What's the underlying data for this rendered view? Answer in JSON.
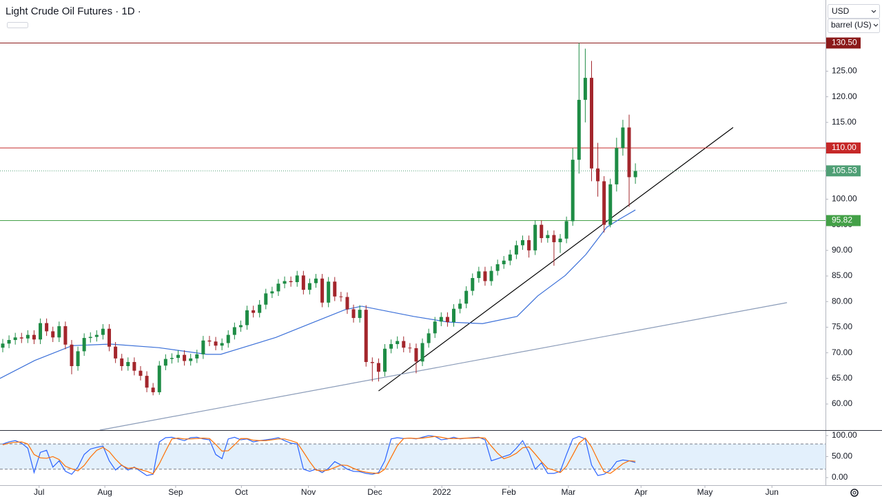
{
  "header": {
    "title": "Light Crude Oil Futures · 1D ·",
    "currency": "USD",
    "unit": "barrel (US)"
  },
  "chart_data": [
    {
      "type": "candlestick",
      "xlim": [
        -0.44,
        131.35
      ],
      "xticks": [
        {
          "value": 5.8,
          "label": "Jul"
        },
        {
          "value": 16.3,
          "label": "Aug"
        },
        {
          "value": 27.6,
          "label": "Sep"
        },
        {
          "value": 38.1,
          "label": "Oct"
        },
        {
          "value": 48.8,
          "label": "Nov"
        },
        {
          "value": 59.4,
          "label": "Dec"
        },
        {
          "value": 70.1,
          "label": "2022"
        },
        {
          "value": 80.8,
          "label": "Feb"
        },
        {
          "value": 90.3,
          "label": "Mar"
        },
        {
          "value": 101.9,
          "label": "Apr"
        },
        {
          "value": 112.1,
          "label": "May"
        },
        {
          "value": 122.8,
          "label": "Jun"
        }
      ],
      "ylim": [
        54.9,
        138.9
      ],
      "yticks": [
        {
          "value": 60,
          "label": "60.00"
        },
        {
          "value": 65,
          "label": "65.00"
        },
        {
          "value": 70,
          "label": "70.00"
        },
        {
          "value": 75,
          "label": "75.00"
        },
        {
          "value": 80,
          "label": "80.00"
        },
        {
          "value": 85,
          "label": "85.00"
        },
        {
          "value": 90,
          "label": "90.00"
        },
        {
          "value": 95,
          "label": "95.00"
        },
        {
          "value": 100,
          "label": "100.00"
        },
        {
          "value": 105,
          "label": "105.00"
        },
        {
          "value": 110,
          "label": "110.00"
        },
        {
          "value": 115,
          "label": "115.00"
        },
        {
          "value": 120,
          "label": "120.00"
        },
        {
          "value": 125,
          "label": "125.00"
        }
      ],
      "up_color": "#1e8c45",
      "down_color": "#a3262c",
      "open": [
        71.0,
        71.8,
        72.5,
        73.0,
        72.8,
        73.5,
        72.6,
        75.8,
        74.2,
        73.0,
        75.2,
        71.6,
        67.4,
        70.3,
        72.9,
        73.1,
        73.5,
        74.7,
        71.2,
        68.9,
        67.4,
        68.2,
        66.5,
        65.5,
        63.2,
        62.3,
        67.5,
        68.8,
        69.0,
        69.6,
        68.4,
        68.9,
        69.7,
        72.4,
        72.2,
        71.4,
        71.9,
        73.5,
        75.0,
        75.4,
        78.3,
        77.8,
        79.4,
        81.6,
        82.0,
        83.5,
        84.0,
        83.8,
        85.1,
        82.3,
        83.6,
        84.5,
        79.8,
        83.9,
        81.0,
        80.9,
        78.5,
        76.8,
        78.4,
        68.2,
        68.0,
        66.3,
        70.8,
        71.7,
        72.3,
        71.0,
        70.9,
        68.3,
        71.9,
        73.8,
        76.1,
        77.0,
        76.0,
        78.6,
        79.6,
        82.1,
        84.6,
        85.9,
        84.0,
        86.0,
        87.3,
        88.0,
        89.2,
        91.0,
        92.0,
        90.0,
        95.0,
        92.4,
        93.0,
        91.6,
        92.3,
        95.7,
        107.7,
        119.4,
        123.7,
        106.0,
        103.5,
        95.0,
        102.9,
        110.0,
        114.0,
        104.3
      ],
      "high": [
        72.7,
        73.4,
        73.9,
        73.9,
        74.4,
        74.4,
        76.7,
        76.7,
        75.1,
        76.1,
        76.1,
        72.5,
        71.2,
        73.8,
        74.0,
        74.4,
        75.6,
        75.6,
        72.1,
        69.8,
        69.1,
        69.1,
        67.4,
        66.4,
        64.1,
        68.4,
        69.7,
        69.9,
        70.5,
        70.5,
        69.8,
        70.6,
        73.3,
        73.3,
        73.1,
        72.8,
        74.4,
        75.9,
        76.3,
        79.2,
        79.2,
        80.3,
        82.5,
        82.9,
        84.4,
        84.9,
        84.9,
        86.0,
        86.0,
        84.5,
        85.4,
        85.4,
        84.8,
        84.8,
        81.9,
        81.8,
        79.4,
        79.3,
        79.3,
        69.1,
        68.9,
        71.7,
        72.6,
        73.2,
        73.2,
        71.9,
        71.8,
        72.8,
        74.7,
        77.0,
        77.9,
        77.9,
        79.5,
        80.5,
        83.0,
        85.5,
        86.8,
        86.8,
        86.9,
        88.2,
        88.9,
        90.1,
        91.9,
        92.9,
        92.9,
        95.9,
        95.9,
        93.9,
        93.9,
        93.2,
        96.6,
        110.0,
        130.5,
        129.4,
        127.0,
        111.0,
        104.5,
        104.0,
        112.0,
        115.5,
        116.5,
        107.0
      ],
      "low": [
        70.1,
        70.9,
        71.6,
        71.9,
        71.9,
        71.7,
        71.7,
        73.3,
        72.1,
        72.1,
        70.7,
        65.8,
        66.5,
        69.4,
        72.0,
        72.2,
        72.6,
        70.3,
        68.0,
        66.5,
        66.5,
        65.6,
        64.6,
        62.3,
        61.7,
        61.8,
        66.6,
        67.9,
        68.1,
        67.5,
        67.5,
        68.0,
        68.8,
        71.3,
        70.5,
        70.5,
        71.0,
        72.6,
        74.1,
        74.5,
        76.9,
        76.9,
        78.5,
        80.7,
        81.1,
        82.6,
        82.9,
        82.9,
        81.4,
        81.4,
        82.7,
        78.9,
        78.9,
        80.1,
        80.0,
        77.6,
        75.9,
        75.9,
        67.3,
        64.4,
        64.4,
        65.4,
        69.9,
        70.8,
        70.1,
        70.0,
        66.0,
        67.4,
        71.0,
        72.9,
        75.2,
        75.1,
        75.1,
        77.7,
        78.7,
        81.2,
        83.7,
        83.1,
        83.1,
        85.1,
        86.4,
        87.1,
        88.3,
        90.1,
        88.6,
        89.1,
        91.5,
        91.5,
        87.0,
        89.5,
        91.4,
        94.8,
        105.0,
        115.0,
        103.5,
        100.5,
        93.5,
        94.5,
        101.5,
        108.5,
        98.5,
        103.0
      ],
      "close": [
        71.8,
        72.5,
        73.0,
        72.8,
        73.5,
        72.6,
        75.8,
        74.2,
        73.0,
        75.2,
        71.6,
        67.4,
        70.3,
        72.9,
        73.1,
        73.5,
        74.7,
        71.2,
        68.9,
        67.4,
        68.2,
        66.5,
        65.5,
        63.2,
        62.3,
        67.5,
        68.8,
        69.0,
        69.6,
        68.4,
        68.9,
        69.7,
        72.4,
        72.2,
        71.4,
        71.9,
        73.5,
        75.0,
        75.4,
        78.3,
        77.8,
        79.4,
        81.6,
        82.0,
        83.5,
        84.0,
        83.8,
        85.1,
        82.3,
        83.6,
        84.5,
        79.8,
        83.9,
        81.0,
        80.9,
        78.5,
        76.8,
        78.4,
        68.2,
        68.0,
        66.3,
        70.8,
        71.7,
        72.3,
        71.0,
        70.9,
        68.3,
        71.9,
        73.8,
        76.1,
        77.0,
        76.0,
        78.6,
        79.6,
        82.1,
        84.6,
        85.9,
        84.0,
        86.0,
        87.3,
        88.0,
        89.2,
        91.0,
        92.0,
        90.0,
        95.0,
        92.4,
        93.0,
        91.6,
        92.3,
        95.7,
        107.7,
        119.4,
        123.7,
        106.0,
        103.5,
        95.0,
        102.9,
        110.0,
        114.0,
        104.3,
        105.5
      ],
      "series": [
        {
          "color": "#3a6fd8",
          "x": [
            -0.44,
            5.1,
            11.1,
            17.2,
            24.9,
            32.6,
            34.8,
            43.6,
            49.1,
            54.6,
            57.3,
            65.6,
            71.1,
            76.6,
            82.1,
            85.4,
            89.8,
            93.1,
            96.4,
            98.6,
            101
          ],
          "values": [
            65.0,
            68.5,
            71.4,
            71.7,
            71.0,
            69.7,
            69.7,
            73.0,
            75.7,
            78.4,
            79.1,
            77.1,
            76.0,
            75.7,
            77.1,
            81.1,
            85.1,
            89.2,
            94.5,
            96.2,
            97.9
          ]
        }
      ],
      "trendlines": [
        {
          "color": "#000000",
          "x": [
            60.0,
            116.6
          ],
          "y": [
            62.55,
            114.0
          ]
        },
        {
          "color": "#8a9bb8",
          "x": [
            15.5,
            125.2
          ],
          "y": [
            54.9,
            79.8
          ]
        }
      ],
      "levels": [
        {
          "value": 130.5,
          "label": "130.50",
          "color": "#8b1a1a",
          "style": "solid"
        },
        {
          "value": 110,
          "label": "110.00",
          "color": "#c62828",
          "style": "solid"
        },
        {
          "value": 105.53,
          "label": "105.53",
          "color": "#4f9f75",
          "style": "dotted"
        },
        {
          "value": 95.82,
          "label": "95.82",
          "color": "#43a047",
          "style": "solid"
        }
      ]
    },
    {
      "type": "stochastic",
      "ylim": [
        -18,
        113
      ],
      "yticks": [
        {
          "value": 100,
          "label": "100.00"
        },
        {
          "value": 50,
          "label": "50.00"
        },
        {
          "value": 0,
          "label": "0.00"
        }
      ],
      "bands": [
        20,
        80
      ],
      "series": [
        {
          "color": "#2962ff",
          "values": [
            80,
            85,
            88,
            82,
            70,
            12,
            60,
            65,
            25,
            40,
            15,
            8,
            25,
            55,
            68,
            72,
            75,
            40,
            18,
            30,
            18,
            25,
            15,
            5,
            8,
            85,
            95,
            96,
            92,
            88,
            95,
            96,
            92,
            90,
            55,
            45,
            92,
            96,
            90,
            92,
            85,
            88,
            90,
            92,
            95,
            88,
            82,
            80,
            20,
            15,
            20,
            12,
            22,
            38,
            30,
            20,
            15,
            14,
            10,
            8,
            12,
            40,
            92,
            95,
            93,
            94,
            92,
            96,
            100,
            98,
            90,
            92,
            96,
            92,
            94,
            95,
            96,
            90,
            40,
            45,
            50,
            55,
            70,
            88,
            60,
            20,
            35,
            10,
            10,
            15,
            55,
            92,
            98,
            92,
            30,
            5,
            8,
            18,
            38,
            42,
            40,
            36
          ]
        },
        {
          "color": "#ff6d00",
          "values": [
            78,
            82,
            84,
            85,
            80,
            55,
            47,
            46,
            50,
            43,
            27,
            21,
            16,
            29,
            49,
            65,
            72,
            62,
            44,
            29,
            22,
            24,
            19,
            15,
            9,
            33,
            63,
            92,
            94,
            92,
            92,
            93,
            94,
            93,
            79,
            63,
            64,
            78,
            93,
            93,
            89,
            88,
            88,
            90,
            92,
            92,
            88,
            83,
            61,
            38,
            18,
            16,
            18,
            24,
            30,
            29,
            22,
            16,
            13,
            11,
            10,
            20,
            48,
            76,
            93,
            94,
            93,
            94,
            96,
            98,
            96,
            93,
            93,
            93,
            94,
            94,
            95,
            94,
            75,
            58,
            45,
            50,
            58,
            71,
            73,
            56,
            38,
            22,
            18,
            12,
            27,
            54,
            82,
            94,
            73,
            42,
            14,
            10,
            21,
            33,
            40,
            39
          ]
        }
      ]
    }
  ]
}
